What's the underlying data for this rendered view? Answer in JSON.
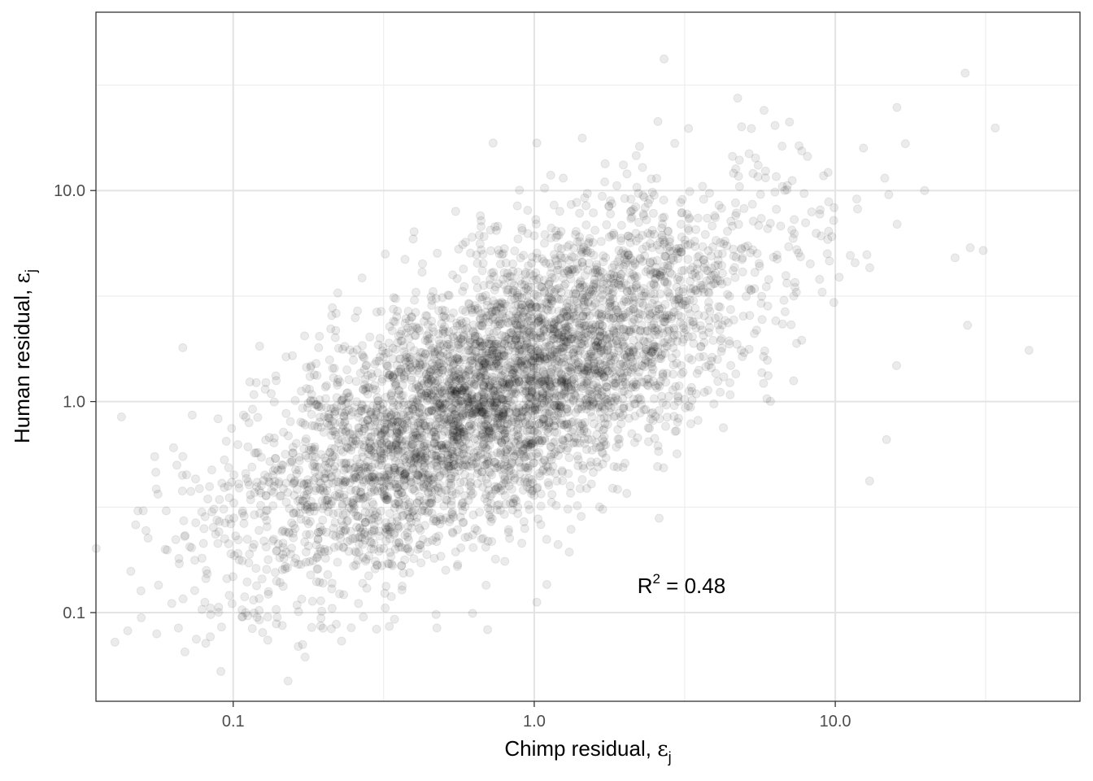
{
  "chart_data": {
    "type": "scatter",
    "x_scale": "log10",
    "y_scale": "log10",
    "xlim": [
      0.035,
      65
    ],
    "ylim": [
      0.038,
      70
    ],
    "grid": true,
    "x_major_ticks": [
      0.1,
      1.0,
      10.0
    ],
    "x_minor_gridlines": [
      0.316,
      3.16,
      31.6
    ],
    "y_major_ticks": [
      0.1,
      1.0,
      10.0
    ],
    "y_minor_gridlines": [
      0.316,
      3.16,
      31.6
    ],
    "x_tick_labels": [
      "0.1",
      "1.0",
      "10.0"
    ],
    "y_tick_labels": [
      "0.1",
      "1.0",
      "10.0"
    ],
    "xlabel": {
      "main": "Chimp residual, ",
      "symbol": "ε",
      "subscript": "j"
    },
    "ylabel": {
      "main": "Human residual, ",
      "symbol": "ε",
      "subscript": "j"
    },
    "annotation": {
      "base": "R",
      "superscript": "2",
      "rest": " =  0.48",
      "x": 2.2,
      "y": 0.134
    },
    "point_color": "#000000",
    "point_opacity": 0.08,
    "point_count": 5000,
    "point_distribution": {
      "log10_x_mean": -0.12,
      "log10_x_sd": 0.42,
      "log10_y_mean": 0.05,
      "log10_y_sd": 0.42,
      "r_squared": 0.48
    },
    "points": [
      [
        2.7,
        42.0
      ],
      [
        27.0,
        36.0
      ],
      [
        0.068,
        1.8
      ],
      [
        44.0,
        1.75
      ],
      [
        0.065,
        0.5
      ],
      [
        0.07,
        0.45
      ],
      [
        0.075,
        0.43
      ],
      [
        0.08,
        0.25
      ],
      [
        0.085,
        0.3
      ],
      [
        0.09,
        0.27
      ],
      [
        0.22,
        0.088
      ],
      [
        0.33,
        0.086
      ],
      [
        0.7,
        0.083
      ],
      [
        1.02,
        0.112
      ],
      [
        13.0,
        0.42
      ],
      [
        14.8,
        0.66
      ],
      [
        5.8,
        24.0
      ],
      [
        0.73,
        16.8
      ],
      [
        1.02,
        16.8
      ],
      [
        0.32,
        5.0
      ],
      [
        27.5,
        2.3
      ],
      [
        34.0,
        19.8
      ],
      [
        19.8,
        10.0
      ],
      [
        25.0,
        4.8
      ],
      [
        31.0,
        5.2
      ],
      [
        0.14,
        0.095
      ],
      [
        0.12,
        0.095
      ],
      [
        0.11,
        0.1
      ],
      [
        2.6,
        0.28
      ],
      [
        1.2,
        0.21
      ]
    ]
  }
}
